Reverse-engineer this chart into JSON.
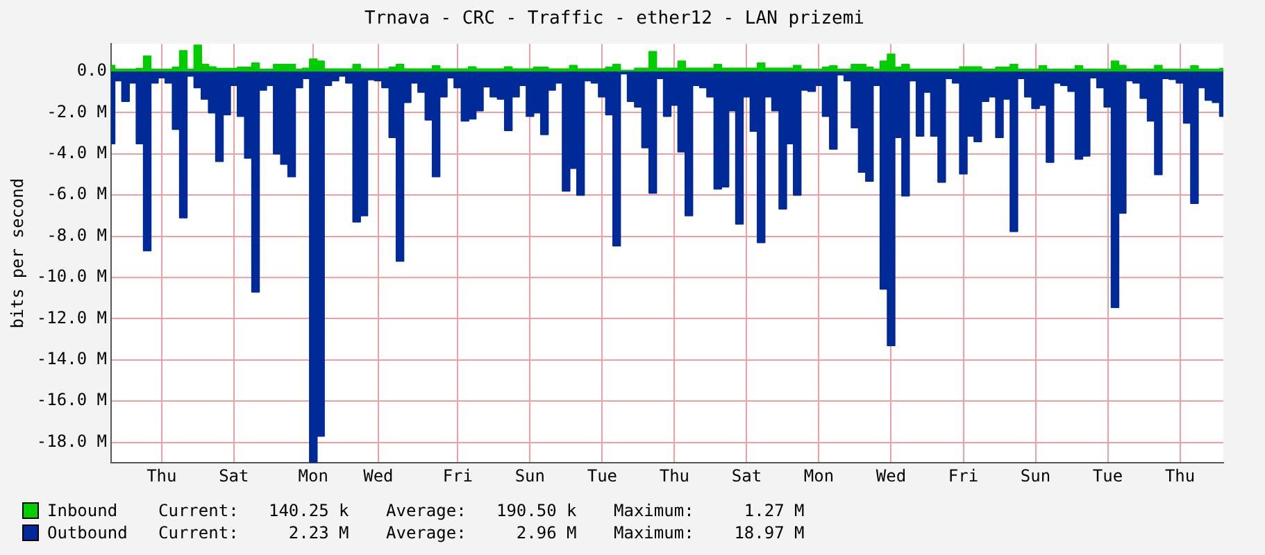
{
  "chart_data": {
    "type": "area",
    "title": "Trnava - CRC - Traffic - ether12 - LAN prizemi",
    "ylabel": "bits per second",
    "categories": [
      null,
      null,
      null,
      null,
      null,
      null,
      null,
      "Thu",
      null,
      null,
      null,
      null,
      null,
      null,
      null,
      null,
      null,
      "Sat",
      null,
      null,
      null,
      null,
      null,
      null,
      null,
      null,
      null,
      null,
      "Mon",
      null,
      null,
      null,
      null,
      null,
      null,
      null,
      null,
      "Wed",
      null,
      null,
      null,
      null,
      null,
      null,
      null,
      null,
      null,
      null,
      "Fri",
      null,
      null,
      null,
      null,
      null,
      null,
      null,
      null,
      null,
      "Sun",
      null,
      null,
      null,
      null,
      null,
      null,
      null,
      null,
      null,
      "Tue",
      null,
      null,
      null,
      null,
      null,
      null,
      null,
      null,
      null,
      "Thu",
      null,
      null,
      null,
      null,
      null,
      null,
      null,
      null,
      null,
      "Sat",
      null,
      null,
      null,
      null,
      null,
      null,
      null,
      null,
      null,
      "Mon",
      null,
      null,
      null,
      null,
      null,
      null,
      null,
      null,
      null,
      "Wed",
      null,
      null,
      null,
      null,
      null,
      null,
      null,
      null,
      null,
      "Fri",
      null,
      null,
      null,
      null,
      null,
      null,
      null,
      null,
      null,
      "Sun",
      null,
      null,
      null,
      null,
      null,
      null,
      null,
      null,
      null,
      "Tue",
      null,
      null,
      null,
      null,
      null,
      null,
      null,
      null,
      null,
      "Thu",
      null,
      null,
      null,
      null,
      null,
      null
    ],
    "ylim": [
      -19,
      1.34
    ],
    "yticks": [
      {
        "value": -18,
        "label": "-18.0 M"
      },
      {
        "value": -16,
        "label": "-16.0 M"
      },
      {
        "value": -14,
        "label": "-14.0 M"
      },
      {
        "value": -12,
        "label": "-12.0 M"
      },
      {
        "value": -10,
        "label": "-10.0 M"
      },
      {
        "value": -8,
        "label": "-8.0 M"
      },
      {
        "value": -6,
        "label": "-6.0 M"
      },
      {
        "value": -4,
        "label": "-4.0 M"
      },
      {
        "value": -2,
        "label": "-2.0 M"
      },
      {
        "value": 0,
        "label": "0.0"
      }
    ],
    "grid": true,
    "legend": "bottom",
    "annotations": [
      "Current:   140.25 k",
      "Average:   190.50 k",
      "Maximum:     1.27 M",
      "Current:     2.23 M",
      "Average:     2.96 M",
      "Maximum:    18.97 M"
    ],
    "series": [
      {
        "name": "Inbound",
        "color": "#00cc00",
        "values": [
          0.29,
          0.1,
          0.1,
          0.1,
          0.14,
          0.74,
          0.1,
          0.1,
          0.1,
          0.2,
          1.0,
          0.1,
          1.27,
          0.34,
          0.22,
          0.14,
          0.14,
          0.14,
          0.2,
          0.2,
          0.4,
          0.1,
          0.1,
          0.34,
          0.34,
          0.34,
          0.1,
          0.15,
          0.6,
          0.5,
          0.12,
          0.12,
          0.12,
          0.12,
          0.34,
          0.12,
          0.12,
          0.12,
          0.12,
          0.2,
          0.34,
          0.12,
          0.12,
          0.12,
          0.12,
          0.27,
          0.12,
          0.12,
          0.12,
          0.12,
          0.22,
          0.12,
          0.12,
          0.12,
          0.12,
          0.22,
          0.12,
          0.12,
          0.12,
          0.2,
          0.2,
          0.12,
          0.12,
          0.12,
          0.29,
          0.12,
          0.12,
          0.12,
          0.12,
          0.2,
          0.34,
          0.05,
          0.05,
          0.15,
          0.15,
          0.96,
          0.15,
          0.15,
          0.15,
          0.5,
          0.15,
          0.15,
          0.15,
          0.15,
          0.34,
          0.15,
          0.15,
          0.15,
          0.15,
          0.15,
          0.4,
          0.15,
          0.15,
          0.15,
          0.15,
          0.29,
          0.1,
          0.1,
          0.1,
          0.2,
          0.27,
          0.1,
          0.1,
          0.34,
          0.34,
          0.2,
          0.1,
          0.5,
          0.83,
          0.2,
          0.34,
          0.1,
          0.1,
          0.1,
          0.1,
          0.1,
          0.1,
          0.1,
          0.22,
          0.22,
          0.22,
          0.1,
          0.1,
          0.2,
          0.2,
          0.34,
          0.1,
          0.1,
          0.1,
          0.27,
          0.1,
          0.1,
          0.1,
          0.1,
          0.27,
          0.1,
          0.1,
          0.1,
          0.1,
          0.5,
          0.29,
          0.1,
          0.1,
          0.1,
          0.1,
          0.29,
          0.1,
          0.1,
          0.1,
          0.1,
          0.27,
          0.1,
          0.1,
          0.1,
          0.14
        ]
      },
      {
        "name": "Outbound",
        "color": "#002a97",
        "values": [
          -3.5,
          -0.45,
          -1.45,
          -0.56,
          -3.5,
          -8.7,
          -0.56,
          -0.3,
          -0.56,
          -2.8,
          -7.1,
          -0.22,
          -0.78,
          -1.34,
          -2.0,
          -4.36,
          -2.1,
          -0.67,
          -2.17,
          -4.2,
          -10.7,
          -0.9,
          -0.67,
          -4.0,
          -4.5,
          -5.1,
          -0.78,
          -0.34,
          -18.97,
          -17.7,
          -0.67,
          -0.45,
          -0.22,
          -0.56,
          -7.3,
          -7.0,
          -0.4,
          -0.45,
          -0.78,
          -3.2,
          -9.2,
          -1.5,
          -0.56,
          -1.0,
          -2.35,
          -5.1,
          -1.23,
          -0.3,
          -0.78,
          -2.4,
          -2.3,
          -1.9,
          -0.74,
          -1.23,
          -1.34,
          -2.86,
          -1.23,
          -0.67,
          -2.17,
          -2.0,
          -3.06,
          -0.9,
          -0.56,
          -5.8,
          -4.7,
          -6.0,
          -0.45,
          -0.56,
          -1.23,
          -2.1,
          -8.46,
          -0.11,
          -1.45,
          -1.72,
          -3.7,
          -5.9,
          -0.34,
          -2.17,
          -1.63,
          -3.9,
          -7.0,
          -0.67,
          -0.78,
          -1.23,
          -5.7,
          -5.6,
          -1.9,
          -7.4,
          -1.23,
          -2.9,
          -8.3,
          -1.23,
          -1.9,
          -6.67,
          -3.5,
          -6.0,
          -0.9,
          -0.96,
          -0.67,
          -2.17,
          -3.76,
          -0.16,
          -0.45,
          -2.73,
          -4.88,
          -5.32,
          -0.67,
          -10.56,
          -13.3,
          -3.2,
          -6.04,
          -0.45,
          -3.13,
          -1.0,
          -3.13,
          -5.37,
          -0.34,
          -0.56,
          -4.97,
          -3.13,
          -3.4,
          -1.45,
          -1.23,
          -3.2,
          -1.34,
          -7.76,
          -0.34,
          -1.23,
          -1.79,
          -1.63,
          -4.4,
          -0.56,
          -0.67,
          -0.96,
          -4.25,
          -4.1,
          -0.3,
          -0.78,
          -1.72,
          -11.45,
          -6.87,
          -0.45,
          -0.56,
          -1.3,
          -2.4,
          -5.0,
          -0.34,
          -0.38,
          -0.56,
          -2.5,
          -6.4,
          -0.78,
          -1.39,
          -1.5,
          -2.17
        ]
      }
    ]
  }
}
